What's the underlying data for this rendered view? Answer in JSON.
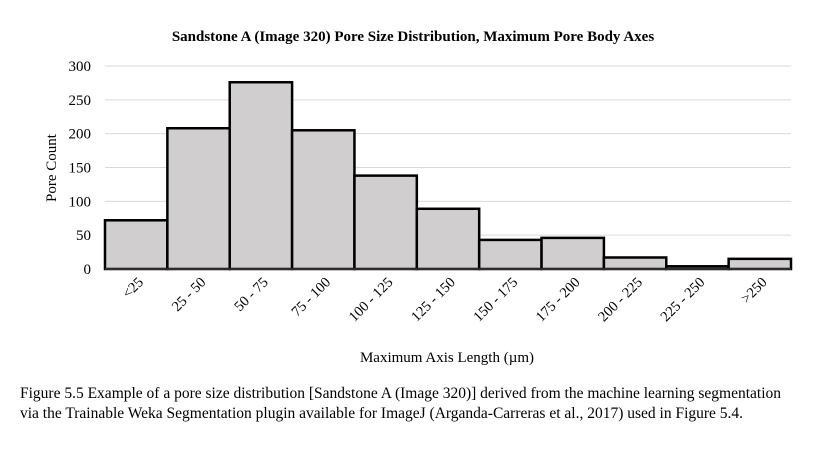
{
  "chart_data": {
    "type": "bar",
    "title": "Sandstone A (Image 320) Pore Size Distribution, Maximum Pore Body Axes",
    "xlabel": "Maximum Axis Length (µm)",
    "ylabel": "Pore Count",
    "categories": [
      "<25",
      "25 - 50",
      "50 - 75",
      "75 - 100",
      "100 - 125",
      "125 - 150",
      "150 - 175",
      "175 - 200",
      "200 - 225",
      "225 - 250",
      ">250"
    ],
    "values": [
      72,
      208,
      276,
      205,
      138,
      89,
      43,
      46,
      17,
      4,
      15
    ],
    "ylim": [
      0,
      300
    ],
    "yticks": [
      0,
      50,
      100,
      150,
      200,
      250,
      300
    ],
    "grid": true,
    "bar_color": "#d0cece",
    "bar_edge_color": "#000000",
    "grid_color": "#d9d9d9"
  },
  "caption": "Figure 5.5 Example of a pore size distribution [Sandstone A (Image 320)] derived from the machine learning segmentation via the Trainable Weka Segmentation plugin available for ImageJ (Arganda-Carreras et al., 2017) used in Figure 5.4."
}
